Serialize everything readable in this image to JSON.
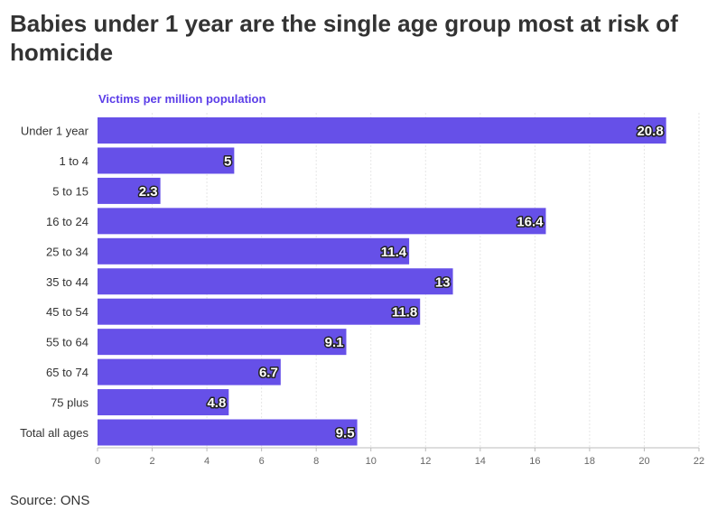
{
  "chart_data": {
    "type": "bar",
    "orientation": "horizontal",
    "title": "Babies under 1 year are the single age group most at risk of homicide",
    "ylabel": "Victims per million population",
    "categories": [
      "Under 1 year",
      "1 to 4",
      "5 to 15",
      "16 to 24",
      "25 to 34",
      "35 to 44",
      "45 to 54",
      "55 to 64",
      "65 to 74",
      "75 plus",
      "Total all ages"
    ],
    "values": [
      20.8,
      5,
      2.3,
      16.4,
      11.4,
      13,
      11.8,
      9.1,
      6.7,
      4.8,
      9.5
    ],
    "xlim": [
      0,
      22
    ],
    "ticks": [
      0,
      2,
      4,
      6,
      8,
      10,
      12,
      14,
      16,
      18,
      20,
      22
    ],
    "grid": true,
    "bar_color": "#6650e8",
    "source": "Source: ONS"
  }
}
